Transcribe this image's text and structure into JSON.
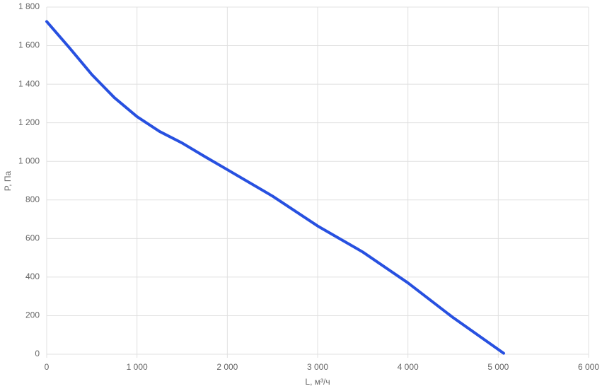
{
  "chart_data": {
    "type": "line",
    "x_label": "L, м³/ч",
    "y_label": "P, Па",
    "x": [
      0,
      250,
      500,
      750,
      1000,
      1250,
      1500,
      1750,
      2000,
      2500,
      3000,
      3500,
      4000,
      4500,
      5060
    ],
    "series": [
      {
        "name": "P",
        "color": "#2750e0",
        "values": [
          1725,
          1590,
          1450,
          1330,
          1232,
          1155,
          1095,
          1025,
          957,
          820,
          665,
          530,
          370,
          190,
          5
        ]
      }
    ],
    "xlim": [
      0,
      6000
    ],
    "xticks": [
      0,
      {
        "value": 1000,
        "label": "1 000"
      },
      {
        "value": 2000,
        "label": "2 000"
      },
      {
        "value": 3000,
        "label": "3 000"
      },
      {
        "value": 4000,
        "label": "4 000"
      },
      {
        "value": 5000,
        "label": "5 000"
      },
      {
        "value": 6000,
        "label": "6 000"
      }
    ],
    "ylim": [
      0,
      1800
    ],
    "yticks": [
      0,
      200,
      400,
      600,
      800,
      {
        "value": 1000,
        "label": "1 000"
      },
      {
        "value": 1200,
        "label": "1 200"
      },
      {
        "value": 1400,
        "label": "1 400"
      },
      {
        "value": 1600,
        "label": "1 600"
      },
      {
        "value": 1800,
        "label": "1 800"
      }
    ],
    "grid": true
  }
}
